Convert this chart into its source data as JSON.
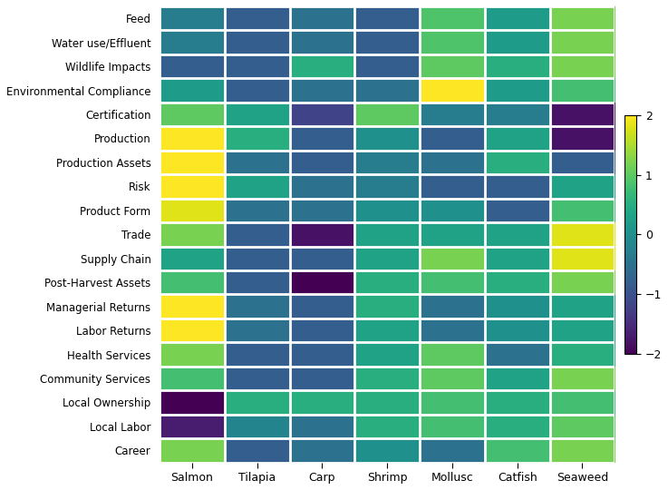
{
  "rows": [
    "Feed",
    "Water use/Effluent",
    "Wildlife Impacts",
    "Environmental Compliance",
    "Certification",
    "Production",
    "Production Assets",
    "Risk",
    "Product Form",
    "Trade",
    "Supply Chain",
    "Post-Harvest Assets",
    "Managerial Returns",
    "Labor Returns",
    "Health Services",
    "Community Services",
    "Local Ownership",
    "Local Labor",
    "Career"
  ],
  "cols": [
    "Salmon",
    "Tilapia",
    "Carp",
    "Shrimp",
    "Mollusc",
    "Catfish",
    "Seaweed"
  ],
  "values": [
    [
      -0.3,
      -0.8,
      -0.5,
      -0.8,
      0.9,
      0.2,
      1.2
    ],
    [
      -0.3,
      -0.8,
      -0.5,
      -0.8,
      0.9,
      0.2,
      1.2
    ],
    [
      -0.8,
      -0.8,
      0.5,
      -0.8,
      1.0,
      0.5,
      1.2
    ],
    [
      0.2,
      -0.8,
      -0.5,
      -0.5,
      2.0,
      0.2,
      0.8
    ],
    [
      1.0,
      0.3,
      -1.2,
      1.0,
      -0.3,
      -0.3,
      -1.8
    ],
    [
      2.0,
      0.5,
      -0.8,
      0.0,
      -0.8,
      0.3,
      -1.8
    ],
    [
      2.0,
      -0.5,
      -0.8,
      -0.3,
      -0.5,
      0.5,
      -0.8
    ],
    [
      2.0,
      0.3,
      -0.5,
      -0.3,
      -0.8,
      -0.8,
      0.3
    ],
    [
      1.8,
      -0.5,
      -0.5,
      0.0,
      0.0,
      -0.8,
      0.8
    ],
    [
      1.2,
      -0.8,
      -1.8,
      0.3,
      0.3,
      0.3,
      1.8
    ],
    [
      0.3,
      -0.8,
      -0.8,
      0.3,
      1.2,
      0.3,
      1.8
    ],
    [
      0.8,
      -0.8,
      -2.0,
      0.5,
      0.8,
      0.5,
      1.2
    ],
    [
      2.0,
      -0.5,
      -0.8,
      0.5,
      -0.5,
      0.0,
      0.3
    ],
    [
      2.0,
      -0.5,
      -0.8,
      0.3,
      -0.5,
      0.0,
      0.3
    ],
    [
      1.2,
      -0.8,
      -0.8,
      0.3,
      1.0,
      -0.5,
      0.5
    ],
    [
      0.8,
      -0.8,
      -0.8,
      0.5,
      1.0,
      0.3,
      1.2
    ],
    [
      -2.0,
      0.5,
      0.5,
      0.5,
      0.8,
      0.5,
      0.8
    ],
    [
      -1.7,
      -0.2,
      -0.5,
      0.5,
      0.8,
      0.5,
      1.0
    ],
    [
      1.2,
      -0.8,
      -0.5,
      0.0,
      -0.5,
      0.8,
      1.2
    ]
  ],
  "vmin": -2,
  "vmax": 2,
  "cmap": "viridis",
  "colorbar_ticks": [
    -2,
    -1,
    0,
    1,
    2
  ],
  "linewidth": 2,
  "linecolor": "white",
  "figsize": [
    7.37,
    5.4
  ],
  "dpi": 100
}
